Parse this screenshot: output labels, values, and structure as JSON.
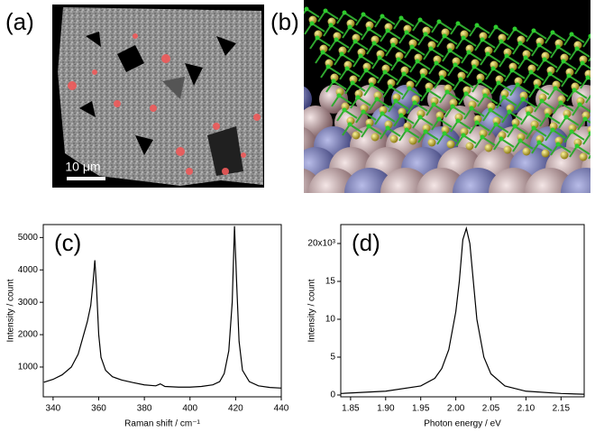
{
  "panels": {
    "a": {
      "label": "(a)",
      "scale_bar": "10 μm"
    },
    "b": {
      "label": "(b)"
    }
  },
  "chart_data": [
    {
      "type": "line",
      "panel_label": "(c)",
      "x_label": "Raman shift / cm⁻¹",
      "y_label": "Intensity / count",
      "color": "#000000",
      "xlim": [
        335.7,
        440
      ],
      "ylim": [
        80,
        5400
      ],
      "xticks": [
        340,
        360,
        380,
        400,
        420,
        440
      ],
      "yticks": [
        1000,
        2000,
        3000,
        4000,
        5000
      ],
      "x": [
        336,
        340,
        344,
        348,
        351,
        353,
        355,
        356.5,
        357.5,
        358.3,
        359,
        360,
        361,
        363,
        366,
        370,
        375,
        380,
        385,
        387,
        389,
        395,
        400,
        405,
        410,
        413,
        415,
        417,
        418.5,
        419.5,
        420.5,
        421.5,
        423,
        426,
        430,
        435,
        440
      ],
      "values": [
        530,
        620,
        760,
        1000,
        1400,
        1900,
        2400,
        2900,
        3600,
        4300,
        3500,
        2000,
        1300,
        900,
        700,
        600,
        520,
        450,
        420,
        480,
        400,
        380,
        380,
        400,
        450,
        550,
        800,
        1500,
        3000,
        5350,
        3500,
        1800,
        900,
        550,
        420,
        370,
        350
      ]
    },
    {
      "type": "line",
      "panel_label": "(d)",
      "x_label": "Photon energy / eV",
      "y_label": "Intensity / count",
      "color": "#000000",
      "xlim": [
        1.836,
        2.183
      ],
      "ylim": [
        -0.24,
        22.5
      ],
      "xticks": [
        {
          "value": 1.85,
          "label": "1.85"
        },
        {
          "value": 1.9,
          "label": "1.90"
        },
        {
          "value": 1.95,
          "label": "1.95"
        },
        {
          "value": 2.0,
          "label": "2.00"
        },
        {
          "value": 2.05,
          "label": "2.05"
        },
        {
          "value": 2.1,
          "label": "2.10"
        },
        {
          "value": 2.15,
          "label": "2.15"
        }
      ],
      "yticks": [
        0,
        5,
        10,
        15,
        {
          "value": 20,
          "label": "20x10³"
        }
      ],
      "x": [
        1.836,
        1.9,
        1.95,
        1.97,
        1.98,
        1.99,
        2.0,
        2.005,
        2.01,
        2.015,
        2.02,
        2.025,
        2.03,
        2.04,
        2.05,
        2.07,
        2.1,
        2.15,
        2.183
      ],
      "values": [
        0.2,
        0.5,
        1.2,
        2.2,
        3.5,
        6,
        11,
        15,
        20.5,
        22,
        20,
        15,
        10,
        5,
        2.8,
        1.2,
        0.5,
        0.2,
        0.1
      ]
    }
  ]
}
